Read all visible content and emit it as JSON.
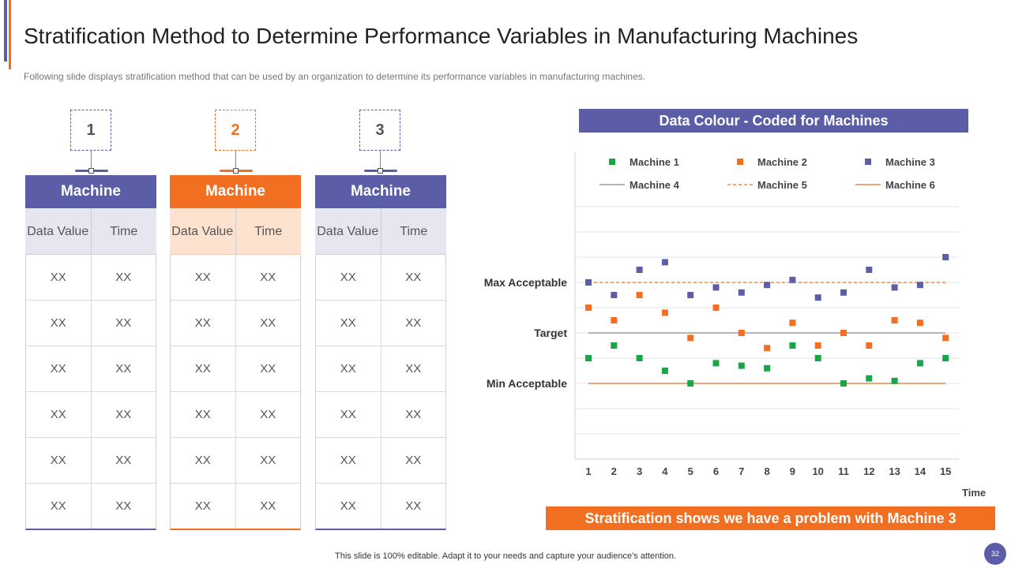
{
  "title": "Stratification Method to Determine Performance Variables in Manufacturing Machines",
  "subtitle": "Following slide displays stratification method that can be used by an organization to determine its performance variables in manufacturing machines.",
  "tables": [
    {
      "number": "1",
      "header": "Machine",
      "col1": "Data Value",
      "col2": "Time",
      "rows": [
        [
          "XX",
          "XX"
        ],
        [
          "XX",
          "XX"
        ],
        [
          "XX",
          "XX"
        ],
        [
          "XX",
          "XX"
        ],
        [
          "XX",
          "XX"
        ],
        [
          "XX",
          "XX"
        ]
      ]
    },
    {
      "number": "2",
      "header": "Machine",
      "col1": "Data Value",
      "col2": "Time",
      "rows": [
        [
          "XX",
          "XX"
        ],
        [
          "XX",
          "XX"
        ],
        [
          "XX",
          "XX"
        ],
        [
          "XX",
          "XX"
        ],
        [
          "XX",
          "XX"
        ],
        [
          "XX",
          "XX"
        ]
      ]
    },
    {
      "number": "3",
      "header": "Machine",
      "col1": "Data Value",
      "col2": "Time",
      "rows": [
        [
          "XX",
          "XX"
        ],
        [
          "XX",
          "XX"
        ],
        [
          "XX",
          "XX"
        ],
        [
          "XX",
          "XX"
        ],
        [
          "XX",
          "XX"
        ],
        [
          "XX",
          "XX"
        ]
      ]
    }
  ],
  "legend_header": "Data Colour - Coded for Machines",
  "chart_data": {
    "type": "scatter",
    "xlabel": "Time",
    "ylabel": "",
    "x": [
      1,
      2,
      3,
      4,
      5,
      6,
      7,
      8,
      9,
      10,
      11,
      12,
      13,
      14,
      15
    ],
    "ylim": [
      0,
      10
    ],
    "series": [
      {
        "name": "Machine 1",
        "kind": "marker",
        "color": "#1aa548",
        "values": [
          4.0,
          4.5,
          4.0,
          3.5,
          3.0,
          3.8,
          3.7,
          3.6,
          4.5,
          4.0,
          3.0,
          3.2,
          3.1,
          3.8,
          4.0
        ]
      },
      {
        "name": "Machine 2",
        "kind": "marker",
        "color": "#f26f21",
        "values": [
          6.0,
          5.5,
          6.5,
          5.8,
          4.8,
          6.0,
          5.0,
          4.4,
          5.4,
          4.5,
          5.0,
          4.5,
          5.5,
          5.4,
          4.8
        ]
      },
      {
        "name": "Machine 3",
        "kind": "marker",
        "color": "#5b5ea6",
        "values": [
          7.0,
          6.5,
          7.5,
          7.8,
          6.5,
          6.8,
          6.6,
          6.9,
          7.1,
          6.4,
          6.6,
          7.5,
          6.8,
          6.9,
          8.0
        ]
      },
      {
        "name": "Machine 4",
        "kind": "line",
        "style": "solid",
        "color": "#888888",
        "y": 5.0
      },
      {
        "name": "Machine 5",
        "kind": "line",
        "style": "dashed",
        "color": "#f26f21",
        "y": 7.0
      },
      {
        "name": "Machine 6",
        "kind": "line",
        "style": "solid",
        "color": "#e07020",
        "y": 3.0
      }
    ],
    "reference_labels": [
      {
        "label": "Max Acceptable",
        "y": 7.0
      },
      {
        "label": "Target",
        "y": 5.0
      },
      {
        "label": "Min Acceptable",
        "y": 3.0
      }
    ]
  },
  "time_label": "Time",
  "banner": "Stratification shows we have a problem with Machine 3",
  "footnote": "This slide is 100% editable. Adapt it to your needs and capture your audience's attention.",
  "page_number": "32",
  "colors": {
    "primary": "#5b5ea6",
    "accent": "#f26f21",
    "green": "#1aa548"
  }
}
